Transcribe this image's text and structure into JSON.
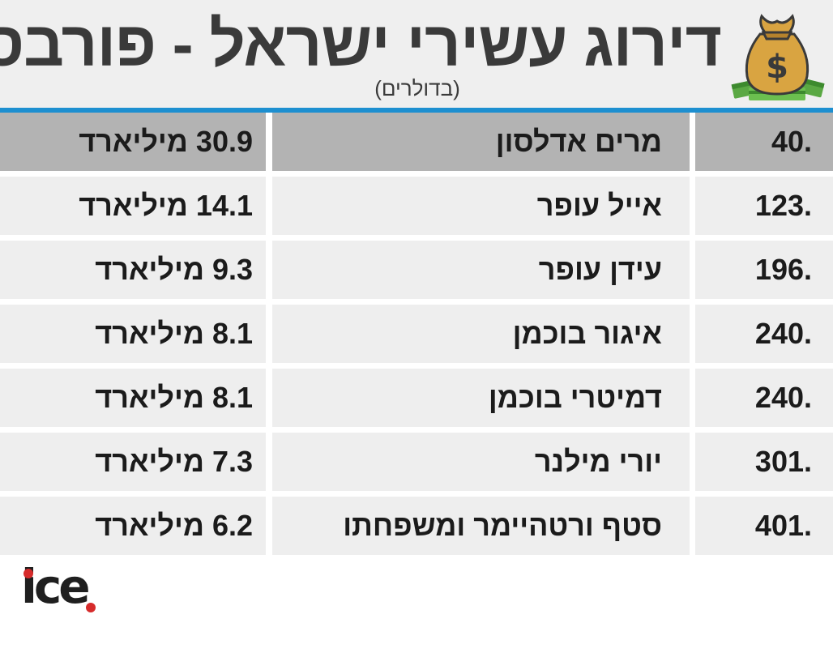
{
  "header": {
    "title": "דירוג עשירי ישראל - פורבס",
    "subtitle": "(בדולרים)",
    "icon": "money-bag-icon"
  },
  "colors": {
    "header_bg": "#efefef",
    "accent_line": "#1d8fd0",
    "row_bg": "#eeeeee",
    "highlight_row_bg": "#b3b3b3",
    "logo_dot": "#d62b2b"
  },
  "chart_data": {
    "type": "table",
    "columns": [
      "rank",
      "name",
      "net_worth"
    ],
    "rows": [
      {
        "rank": "40.",
        "name": "מרים אדלסון",
        "net_worth": "30.9 מיליארד",
        "value": 30.9
      },
      {
        "rank": "123.",
        "name": "אייל עופר",
        "net_worth": "14.1 מיליארד",
        "value": 14.1
      },
      {
        "rank": "196.",
        "name": "עידן עופר",
        "net_worth": "9.3 מיליארד",
        "value": 9.3
      },
      {
        "rank": "240.",
        "name": "איגור בוכמן",
        "net_worth": "8.1 מיליארד",
        "value": 8.1
      },
      {
        "rank": "240.",
        "name": "דמיטרי בוכמן",
        "net_worth": "8.1 מיליארד",
        "value": 8.1
      },
      {
        "rank": "301.",
        "name": "יורי מילנר",
        "net_worth": "7.3 מיליארד",
        "value": 7.3
      },
      {
        "rank": "401.",
        "name": "סטף ורטהיימר ומשפחתו",
        "net_worth": "6.2 מיליארד",
        "value": 6.2
      }
    ]
  },
  "logo": {
    "text": "ice"
  }
}
